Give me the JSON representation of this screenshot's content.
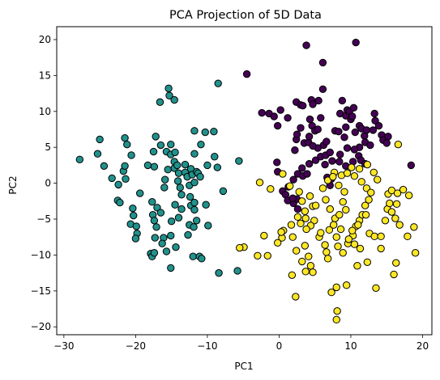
{
  "chart_data": {
    "type": "scatter",
    "title": "PCA Projection of 5D Data",
    "xlabel": "PC1",
    "ylabel": "PC2",
    "xlim": [
      -31,
      21.3
    ],
    "ylim": [
      -21.1,
      21.8
    ],
    "xticks": [
      -30,
      -20,
      -10,
      0,
      10,
      20
    ],
    "yticks": [
      -20,
      -15,
      -10,
      -5,
      0,
      5,
      10,
      15,
      20
    ],
    "grid": false,
    "legend": "none",
    "marker_edge_color": "#000000",
    "series": [
      {
        "color": "#21918c",
        "points": [
          [
            -27.8,
            3.3
          ],
          [
            -25,
            6.1
          ],
          [
            -25.3,
            4.1
          ],
          [
            -24.4,
            2.4
          ],
          [
            -23.3,
            0.7
          ],
          [
            -22.4,
            -0.2
          ],
          [
            -21.7,
            1.7
          ],
          [
            -21.5,
            2.4
          ],
          [
            -21.4,
            0.6
          ],
          [
            -21.5,
            6.3
          ],
          [
            -21.2,
            5.4
          ],
          [
            -20.6,
            3.9
          ],
          [
            -22.5,
            -2.4
          ],
          [
            -22.2,
            -2.7
          ],
          [
            -20.4,
            -3.5
          ],
          [
            -20.3,
            -4.5
          ],
          [
            -20.7,
            -5.7
          ],
          [
            -19.9,
            -6.0
          ],
          [
            -19.8,
            -7.0
          ],
          [
            -20.0,
            -7.7
          ],
          [
            -19.4,
            -1.4
          ],
          [
            -18.3,
            2.5
          ],
          [
            -17.5,
            4.4
          ],
          [
            -17.2,
            6.5
          ],
          [
            -17.4,
            2.3
          ],
          [
            -16.5,
            5.3
          ],
          [
            -17.7,
            -2.6
          ],
          [
            -17.6,
            -4.4
          ],
          [
            -17.4,
            -5.2
          ],
          [
            -17.0,
            -3.4
          ],
          [
            -16.5,
            -4.1
          ],
          [
            -17.1,
            -6.1
          ],
          [
            -17.3,
            -7.6
          ],
          [
            -16.1,
            -7.6
          ],
          [
            -16.3,
            -8.4
          ],
          [
            -16.0,
            -0.6
          ],
          [
            -15.9,
            0.5
          ],
          [
            -15.5,
            1.9
          ],
          [
            -15.7,
            4.4
          ],
          [
            -15.1,
            4.0
          ],
          [
            -16.6,
            11.3
          ],
          [
            -15.4,
            13.2
          ],
          [
            -15.3,
            12.2
          ],
          [
            -14.6,
            11.6
          ],
          [
            -14.5,
            4.3
          ],
          [
            -14.6,
            3.0
          ],
          [
            -14.6,
            2.1
          ],
          [
            -14.2,
            2.5
          ],
          [
            -14.0,
            1.4
          ],
          [
            -14.1,
            0.3
          ],
          [
            -13.8,
            -0.6
          ],
          [
            -13.6,
            -1.6
          ],
          [
            -14.5,
            -3.0
          ],
          [
            -15.0,
            -5.3
          ],
          [
            -14.0,
            -4.8
          ],
          [
            -13.6,
            -3.6
          ],
          [
            -15.1,
            -7.3
          ],
          [
            -14.4,
            -8.9
          ],
          [
            -15.7,
            -9.5
          ],
          [
            -17.9,
            -9.8
          ],
          [
            -17.7,
            -10.2
          ],
          [
            -17.4,
            -9.7
          ],
          [
            -15.1,
            -11.8
          ],
          [
            -13.1,
            2.6
          ],
          [
            -13.1,
            1.5
          ],
          [
            -12.8,
            0.9
          ],
          [
            -12.5,
            -0.3
          ],
          [
            -12.3,
            2.0
          ],
          [
            -12.1,
            1.2
          ],
          [
            -11.5,
            1.6
          ],
          [
            -11.3,
            1.4
          ],
          [
            -11.8,
            0.1
          ],
          [
            -11.0,
            0.9
          ],
          [
            -12.4,
            -1.9
          ],
          [
            -12.3,
            -3.1
          ],
          [
            -11.8,
            -2.7
          ],
          [
            -11.8,
            -3.7
          ],
          [
            -12.5,
            -5.8
          ],
          [
            -11.9,
            -6.1
          ],
          [
            -12.7,
            -7.2
          ],
          [
            -12.0,
            -10.2
          ],
          [
            -11.1,
            -10.2
          ],
          [
            -11.5,
            -5.2
          ],
          [
            -11.8,
            4.1
          ],
          [
            -11.8,
            7.3
          ],
          [
            -10.9,
            5.4
          ],
          [
            -10.3,
            7.1
          ],
          [
            -9.1,
            7.2
          ],
          [
            -10.2,
            -3.0
          ],
          [
            -9.9,
            -5.9
          ],
          [
            -10.0,
            2.5
          ],
          [
            -9.0,
            3.7
          ],
          [
            -8.6,
            2.2
          ],
          [
            -8.5,
            13.9
          ],
          [
            -7.8,
            -1.1
          ],
          [
            -8.4,
            -12.5
          ],
          [
            -5.6,
            3.1
          ],
          [
            -5.8,
            -12.2
          ],
          [
            -10.8,
            -10.5
          ],
          [
            -15.1,
            5.4
          ]
        ]
      },
      {
        "color": "#440154",
        "points": [
          [
            -4.5,
            15.2
          ],
          [
            -2.4,
            9.8
          ],
          [
            -1.4,
            9.7
          ],
          [
            -0.7,
            9.3
          ],
          [
            -0.2,
            8.0
          ],
          [
            0.2,
            10.2
          ],
          [
            1.2,
            9.1
          ],
          [
            2.4,
            11.3
          ],
          [
            3.0,
            10.9
          ],
          [
            3.8,
            19.2
          ],
          [
            2.4,
            6.1
          ],
          [
            3.0,
            7.7
          ],
          [
            3.3,
            10.8
          ],
          [
            3.5,
            5.6
          ],
          [
            4.1,
            5.7
          ],
          [
            4.3,
            8.9
          ],
          [
            4.5,
            11.6
          ],
          [
            4.7,
            11.0
          ],
          [
            4.6,
            8.0
          ],
          [
            5.0,
            7.3
          ],
          [
            5.4,
            7.5
          ],
          [
            5.8,
            9.1
          ],
          [
            6.1,
            16.8
          ],
          [
            6.1,
            13.1
          ],
          [
            6.2,
            5.3
          ],
          [
            5.4,
            4.9
          ],
          [
            4.7,
            5.2
          ],
          [
            4.2,
            6.5
          ],
          [
            4.2,
            2.7
          ],
          [
            5.1,
            3.2
          ],
          [
            5.8,
            3.7
          ],
          [
            6.5,
            3.9
          ],
          [
            6.4,
            2.6
          ],
          [
            7.1,
            4.3
          ],
          [
            7.4,
            3.1
          ],
          [
            7.8,
            7.3
          ],
          [
            8.3,
            7.2
          ],
          [
            8.5,
            9.7
          ],
          [
            8.8,
            11.5
          ],
          [
            9.3,
            9.4
          ],
          [
            9.3,
            7.8
          ],
          [
            9.5,
            10.2
          ],
          [
            9.8,
            10.0
          ],
          [
            10.4,
            10.5
          ],
          [
            10.7,
            19.6
          ],
          [
            10.0,
            8.9
          ],
          [
            10.6,
            7.1
          ],
          [
            11.2,
            8.0
          ],
          [
            11.5,
            7.6
          ],
          [
            11.9,
            6.6
          ],
          [
            12.2,
            7.4
          ],
          [
            12.0,
            5.7
          ],
          [
            11.2,
            5.0
          ],
          [
            10.5,
            4.7
          ],
          [
            9.5,
            4.9
          ],
          [
            9.1,
            6.4
          ],
          [
            8.5,
            4.0
          ],
          [
            8.4,
            3.0
          ],
          [
            9.3,
            2.4
          ],
          [
            10.3,
            3.0
          ],
          [
            11.1,
            3.8
          ],
          [
            11.4,
            3.2
          ],
          [
            12.0,
            2.7
          ],
          [
            12.7,
            5.3
          ],
          [
            13.1,
            7.4
          ],
          [
            13.4,
            8.7
          ],
          [
            13.3,
            9.7
          ],
          [
            13.9,
            8.0
          ],
          [
            14.3,
            6.7
          ],
          [
            14.5,
            6.0
          ],
          [
            15.0,
            5.6
          ],
          [
            15.2,
            6.5
          ],
          [
            18.4,
            2.5
          ],
          [
            3.2,
            2.1
          ],
          [
            2.6,
            1.3
          ],
          [
            2.0,
            0.5
          ],
          [
            1.3,
            -0.5
          ],
          [
            0.5,
            -1.1
          ],
          [
            0.9,
            -1.6
          ],
          [
            1.2,
            -2.4
          ],
          [
            2.0,
            -2.8
          ],
          [
            2.5,
            -2.2
          ],
          [
            2.6,
            -3.6
          ],
          [
            1.9,
            -2.1
          ],
          [
            3.3,
            1.0
          ],
          [
            3.9,
            1.3
          ],
          [
            6.7,
            0.8
          ],
          [
            7.3,
            0.6
          ],
          [
            7.1,
            -0.3
          ],
          [
            6.6,
            5.8
          ],
          [
            2.2,
            4.6
          ],
          [
            -0.3,
            2.9
          ],
          [
            -0.2,
            1.6
          ],
          [
            5.5,
            11.5
          ],
          [
            10.2,
            9.3
          ],
          [
            2.5,
            6.8
          ]
        ]
      },
      {
        "color": "#fde725",
        "points": [
          [
            -2.7,
            0.1
          ],
          [
            -1.2,
            -0.8
          ],
          [
            0.5,
            1.3
          ],
          [
            1.5,
            -0.4
          ],
          [
            2.8,
            -1.2
          ],
          [
            3.2,
            -2.5
          ],
          [
            4.3,
            -1.8
          ],
          [
            3.6,
            -3.9
          ],
          [
            4.7,
            -3.2
          ],
          [
            4.9,
            -5.2
          ],
          [
            4.4,
            -5.9
          ],
          [
            3.8,
            -6.4
          ],
          [
            3.0,
            -5.6
          ],
          [
            2.6,
            -4.7
          ],
          [
            1.7,
            -5.8
          ],
          [
            0.6,
            -6.6
          ],
          [
            0.4,
            -7.6
          ],
          [
            -0.2,
            -8.3
          ],
          [
            1.9,
            -7.5
          ],
          [
            2.4,
            -9.4
          ],
          [
            3.6,
            -8.7
          ],
          [
            3.2,
            -10.9
          ],
          [
            3.7,
            -12.3
          ],
          [
            4.4,
            -11.5
          ],
          [
            4.1,
            -10.2
          ],
          [
            5.6,
            -7.5
          ],
          [
            5.8,
            -6.9
          ],
          [
            6.4,
            -8.6
          ],
          [
            6.6,
            -9.6
          ],
          [
            7.0,
            -6.5
          ],
          [
            7.6,
            -5.8
          ],
          [
            7.8,
            -4.9
          ],
          [
            7.1,
            -3.6
          ],
          [
            6.5,
            -2.3
          ],
          [
            6.1,
            -0.7
          ],
          [
            6.8,
            0.4
          ],
          [
            7.7,
            1.5
          ],
          [
            8.3,
            -0.3
          ],
          [
            8.7,
            1.1
          ],
          [
            9.1,
            -1.2
          ],
          [
            8.9,
            -2.6
          ],
          [
            9.3,
            -3.7
          ],
          [
            8.4,
            -4.4
          ],
          [
            8.6,
            -6.4
          ],
          [
            8.0,
            -7.5
          ],
          [
            8.2,
            -8.8
          ],
          [
            8.9,
            -9.7
          ],
          [
            9.6,
            -8.4
          ],
          [
            10.3,
            -7.3
          ],
          [
            10.7,
            -6.0
          ],
          [
            11.2,
            -5.2
          ],
          [
            11.6,
            -4.4
          ],
          [
            12.0,
            -3.1
          ],
          [
            12.5,
            -2.3
          ],
          [
            12.2,
            -0.7
          ],
          [
            11.5,
            0.2
          ],
          [
            10.5,
            1.0
          ],
          [
            9.5,
            1.4
          ],
          [
            10.1,
            2.2
          ],
          [
            11.2,
            2.0
          ],
          [
            12.3,
            2.6
          ],
          [
            13.2,
            1.5
          ],
          [
            13.7,
            0.5
          ],
          [
            12.8,
            -1.3
          ],
          [
            12.1,
            -4.4
          ],
          [
            11.0,
            -5.8
          ],
          [
            10.2,
            -6.6
          ],
          [
            9.7,
            -7.8
          ],
          [
            10.5,
            -8.5
          ],
          [
            11.3,
            -9.1
          ],
          [
            12.6,
            -7.0
          ],
          [
            13.3,
            -7.4
          ],
          [
            14.2,
            -7.4
          ],
          [
            14.8,
            -5.2
          ],
          [
            15.1,
            -3.6
          ],
          [
            15.4,
            -2.8
          ],
          [
            15.2,
            -1.5
          ],
          [
            15.7,
            -1.0
          ],
          [
            16.5,
            -1.4
          ],
          [
            17.3,
            -0.9
          ],
          [
            18.1,
            -1.7
          ],
          [
            16.4,
            -2.9
          ],
          [
            15.7,
            -4.0
          ],
          [
            16.2,
            -4.9
          ],
          [
            16.8,
            -5.8
          ],
          [
            17.9,
            -7.4
          ],
          [
            18.8,
            -6.1
          ],
          [
            19.0,
            -9.7
          ],
          [
            16.3,
            -11.1
          ],
          [
            16.0,
            -12.7
          ],
          [
            14.2,
            -9.1
          ],
          [
            13.5,
            -14.6
          ],
          [
            8.0,
            -14.5
          ],
          [
            7.3,
            -15.2
          ],
          [
            4.7,
            -12.4
          ],
          [
            1.8,
            -12.8
          ],
          [
            2.3,
            -15.8
          ],
          [
            8.1,
            -17.8
          ],
          [
            8.0,
            -19.0
          ],
          [
            -4.9,
            -8.9
          ],
          [
            -5.5,
            -9.0
          ],
          [
            -3.0,
            -10.1
          ],
          [
            -1.6,
            -10.1
          ],
          [
            -2.1,
            -7.3
          ],
          [
            0.3,
            -6.8
          ],
          [
            7.5,
            0.9
          ],
          [
            16.6,
            5.4
          ],
          [
            12.3,
            -11.0
          ],
          [
            10.9,
            -11.5
          ],
          [
            5.1,
            -3.1
          ],
          [
            3.7,
            -4.9
          ],
          [
            6.8,
            -10.5
          ],
          [
            9.4,
            -14.2
          ]
        ]
      }
    ]
  }
}
